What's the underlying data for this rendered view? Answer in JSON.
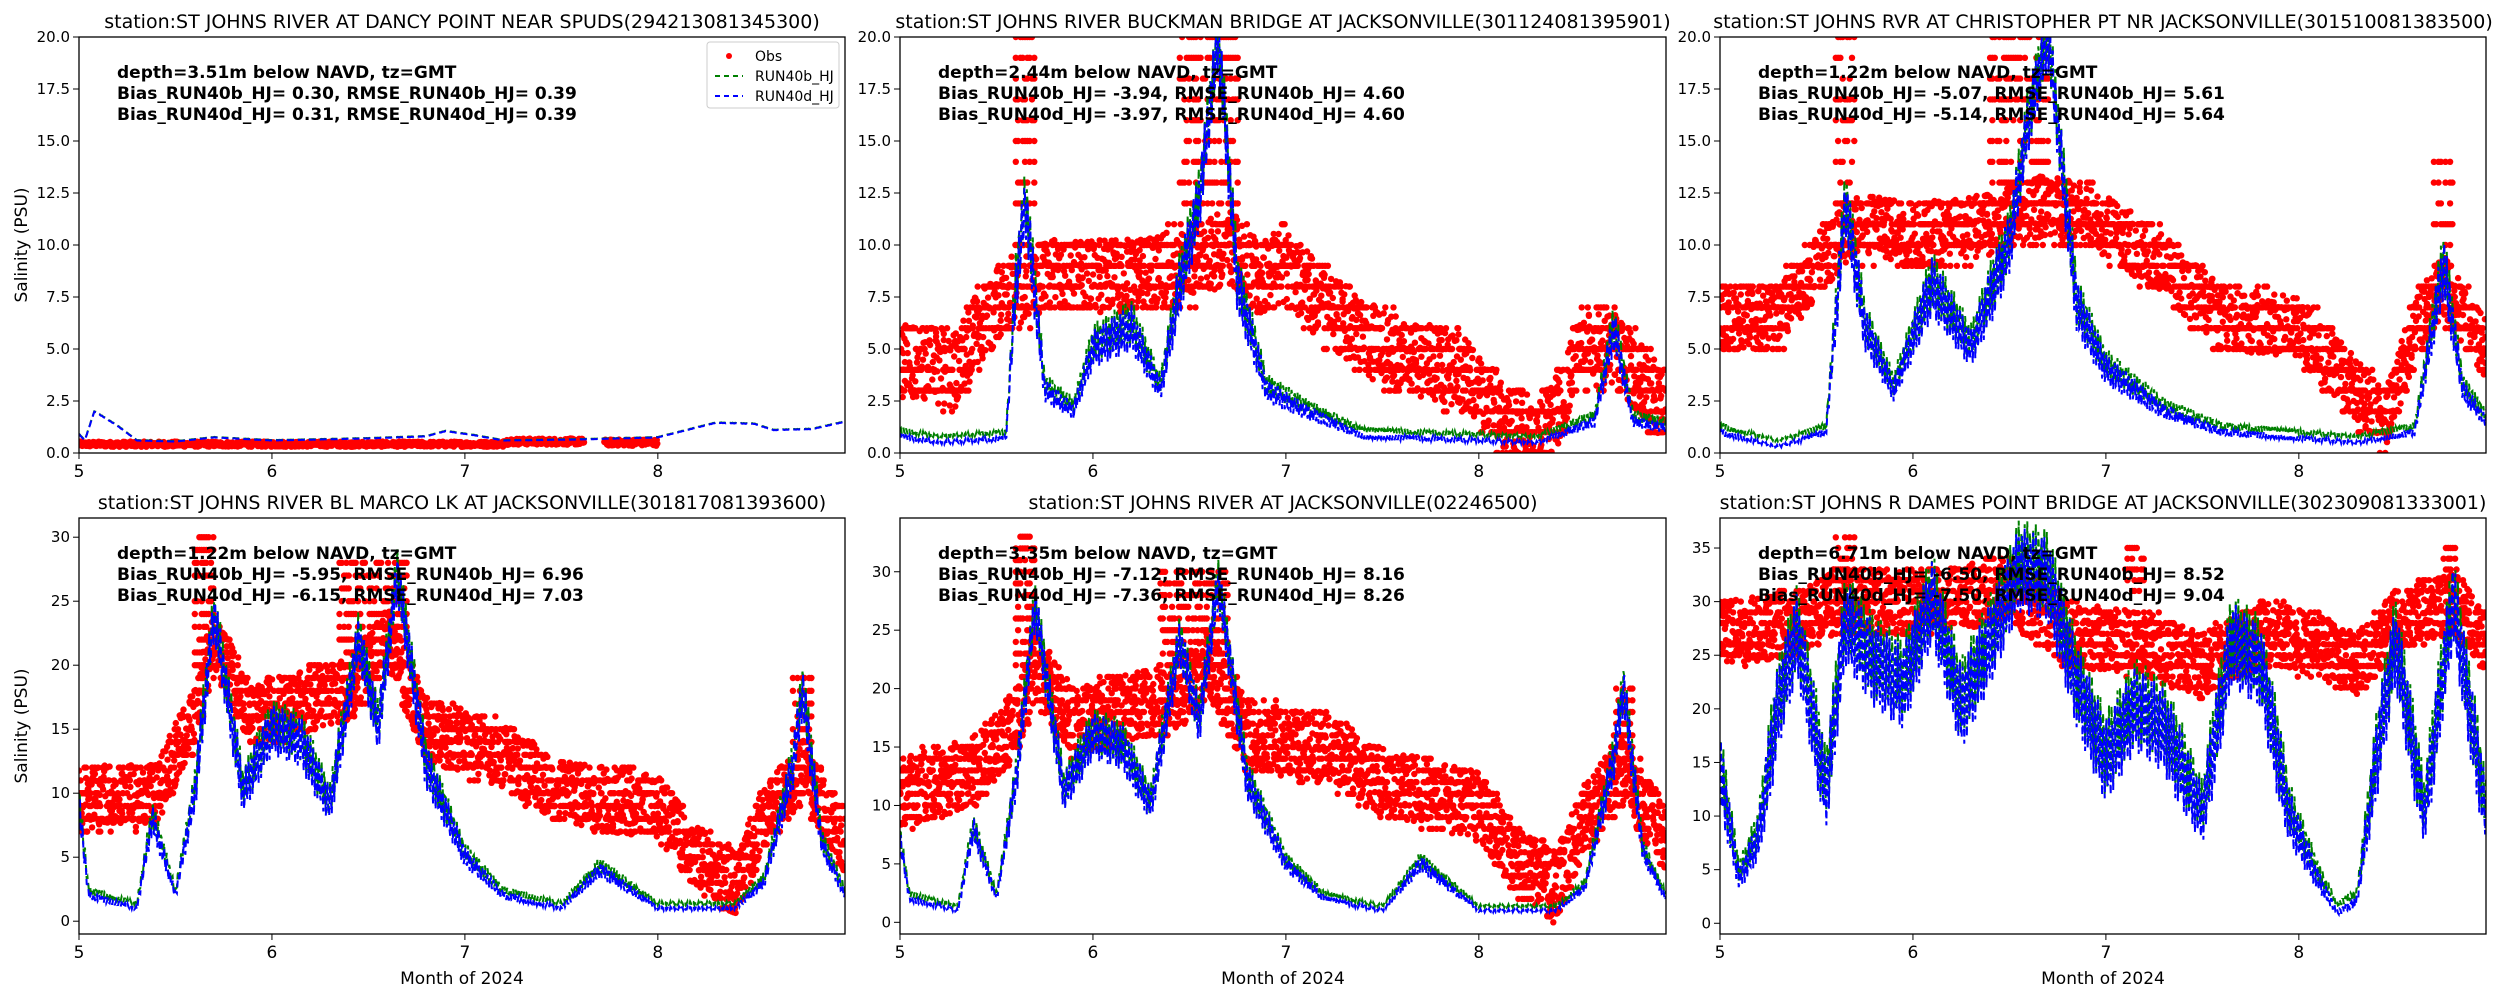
{
  "figure": {
    "legend_location": "upper-right of first panel",
    "colors": {
      "obs": "#ff0000",
      "run40b": "#008000",
      "run40d": "#0000ff"
    }
  },
  "chart_data": [
    {
      "type": "scatter",
      "title": "station:ST JOHNS RIVER AT DANCY POINT NEAR SPUDS(294213081345300)",
      "xlabel": "",
      "ylabel": "Salinity (PSU)",
      "xlim": [
        5,
        8.97
      ],
      "ylim": [
        0,
        20
      ],
      "xticks": [
        "5",
        "6",
        "7",
        "8"
      ],
      "yticks": [
        "0.0",
        "2.5",
        "5.0",
        "7.5",
        "10.0",
        "12.5",
        "15.0",
        "17.5",
        "20.0"
      ],
      "ytick_values": [
        0,
        2.5,
        5,
        7.5,
        10,
        12.5,
        15,
        17.5,
        20
      ],
      "stats": [
        "depth=3.51m below NAVD, tz=GMT",
        "Bias_RUN40b_HJ=  0.30, RMSE_RUN40b_HJ=  0.39",
        "Bias_RUN40d_HJ=  0.31, RMSE_RUN40d_HJ=  0.39"
      ],
      "legend": [
        "Obs",
        "RUN40b_HJ",
        "RUN40d_HJ"
      ],
      "show_legend": true,
      "obs_bands": [
        [
          5.0,
          7.2,
          0.3,
          0.55
        ],
        [
          7.2,
          7.62,
          0.4,
          0.7
        ],
        [
          7.72,
          8.0,
          0.35,
          0.65
        ]
      ],
      "model_d": [
        [
          5.0,
          0.9
        ],
        [
          5.03,
          0.6
        ],
        [
          5.08,
          2.0
        ],
        [
          5.2,
          1.3
        ],
        [
          5.3,
          0.6
        ],
        [
          5.5,
          0.55
        ],
        [
          5.7,
          0.75
        ],
        [
          6.0,
          0.6
        ],
        [
          6.5,
          0.7
        ],
        [
          6.8,
          0.8
        ],
        [
          6.9,
          1.05
        ],
        [
          7.05,
          0.85
        ],
        [
          7.2,
          0.6
        ],
        [
          7.6,
          0.65
        ],
        [
          8.0,
          0.75
        ],
        [
          8.3,
          1.45
        ],
        [
          8.5,
          1.4
        ],
        [
          8.6,
          1.1
        ],
        [
          8.8,
          1.15
        ],
        [
          8.97,
          1.5
        ]
      ],
      "model_b_offset": 0.02,
      "noise": 0.05
    },
    {
      "type": "scatter",
      "title": "station:ST JOHNS RIVER BUCKMAN BRIDGE AT JACKSONVILLE(301124081395901)",
      "xlabel": "",
      "ylabel": "",
      "xlim": [
        5,
        8.97
      ],
      "ylim": [
        0,
        20
      ],
      "xticks": [
        "5",
        "6",
        "7",
        "8"
      ],
      "yticks": [
        "0.0",
        "2.5",
        "5.0",
        "7.5",
        "10.0",
        "12.5",
        "15.0",
        "17.5",
        "20.0"
      ],
      "ytick_values": [
        0,
        2.5,
        5,
        7.5,
        10,
        12.5,
        15,
        17.5,
        20
      ],
      "stats": [
        "depth=2.44m below NAVD, tz=GMT",
        "Bias_RUN40b_HJ= -3.94, RMSE_RUN40b_HJ=  4.60",
        "Bias_RUN40d_HJ= -3.97, RMSE_RUN40d_HJ=  4.60"
      ],
      "show_legend": false,
      "obs_center": [
        [
          5.0,
          4.5
        ],
        [
          5.3,
          4.0
        ],
        [
          5.4,
          6.0
        ],
        [
          5.6,
          8.0
        ],
        [
          5.8,
          8.5
        ],
        [
          6.2,
          8.5
        ],
        [
          6.5,
          9.0
        ],
        [
          6.7,
          10.0
        ],
        [
          6.85,
          8.5
        ],
        [
          7.0,
          9.0
        ],
        [
          7.2,
          7.0
        ],
        [
          7.5,
          5.0
        ],
        [
          7.9,
          4.0
        ],
        [
          8.1,
          2.0
        ],
        [
          8.3,
          0.8
        ],
        [
          8.45,
          2.5
        ],
        [
          8.5,
          5.0
        ],
        [
          8.7,
          5.0
        ],
        [
          8.97,
          2.0
        ]
      ],
      "obs_spread": 1.8,
      "obs_spikes": [
        [
          5.6,
          5.7,
          12,
          20
        ],
        [
          6.45,
          6.75,
          12,
          20
        ]
      ],
      "model_d": [
        [
          5.0,
          0.8
        ],
        [
          5.2,
          0.5
        ],
        [
          5.55,
          0.7
        ],
        [
          5.6,
          8.0
        ],
        [
          5.65,
          12.0
        ],
        [
          5.75,
          3.0
        ],
        [
          5.9,
          2.0
        ],
        [
          6.0,
          5.0
        ],
        [
          6.2,
          6.0
        ],
        [
          6.35,
          3.0
        ],
        [
          6.45,
          8.0
        ],
        [
          6.55,
          12.0
        ],
        [
          6.65,
          20.0
        ],
        [
          6.75,
          8.0
        ],
        [
          6.9,
          3.0
        ],
        [
          7.1,
          2.0
        ],
        [
          7.4,
          0.8
        ],
        [
          8.0,
          0.6
        ],
        [
          8.3,
          0.5
        ],
        [
          8.6,
          1.5
        ],
        [
          8.7,
          6.0
        ],
        [
          8.8,
          1.5
        ],
        [
          8.97,
          1.2
        ]
      ],
      "model_b_offset": 0.3,
      "noise": 1.5
    },
    {
      "type": "scatter",
      "title": "station:ST JOHNS RVR AT CHRISTOPHER PT NR JACKSONVILLE(301510081383500)",
      "xlabel": "",
      "ylabel": "",
      "xlim": [
        5,
        8.97
      ],
      "ylim": [
        0,
        20
      ],
      "xticks": [
        "5",
        "6",
        "7",
        "8"
      ],
      "yticks": [
        "0.0",
        "2.5",
        "5.0",
        "7.5",
        "10.0",
        "12.5",
        "15.0",
        "17.5",
        "20.0"
      ],
      "ytick_values": [
        0,
        2.5,
        5,
        7.5,
        10,
        12.5,
        15,
        17.5,
        20
      ],
      "stats": [
        "depth=1.22m below NAVD, tz=GMT",
        "Bias_RUN40b_HJ= -5.07, RMSE_RUN40b_HJ=  5.61",
        "Bias_RUN40d_HJ= -5.14, RMSE_RUN40d_HJ=  5.64"
      ],
      "show_legend": false,
      "obs_center": [
        [
          5.0,
          6.5
        ],
        [
          5.3,
          6.5
        ],
        [
          5.5,
          9.0
        ],
        [
          5.7,
          11.0
        ],
        [
          6.0,
          10.5
        ],
        [
          6.4,
          11.0
        ],
        [
          6.7,
          12.0
        ],
        [
          7.0,
          11.0
        ],
        [
          7.3,
          9.0
        ],
        [
          7.6,
          6.5
        ],
        [
          8.0,
          6.0
        ],
        [
          8.3,
          3.0
        ],
        [
          8.45,
          1.5
        ],
        [
          8.6,
          6.0
        ],
        [
          8.75,
          8.0
        ],
        [
          8.97,
          5.0
        ]
      ],
      "obs_spread": 1.5,
      "obs_spikes": [
        [
          5.6,
          5.7,
          12,
          20
        ],
        [
          6.4,
          6.7,
          12,
          20
        ],
        [
          8.7,
          8.8,
          10,
          14
        ]
      ],
      "model_d": [
        [
          5.0,
          1.0
        ],
        [
          5.3,
          0.3
        ],
        [
          5.55,
          1.0
        ],
        [
          5.65,
          12.0
        ],
        [
          5.75,
          6.0
        ],
        [
          5.9,
          3.0
        ],
        [
          6.1,
          8.0
        ],
        [
          6.3,
          5.0
        ],
        [
          6.5,
          10.0
        ],
        [
          6.6,
          16.0
        ],
        [
          6.7,
          20.0
        ],
        [
          6.85,
          7.0
        ],
        [
          7.0,
          4.0
        ],
        [
          7.3,
          2.0
        ],
        [
          7.6,
          1.0
        ],
        [
          8.3,
          0.5
        ],
        [
          8.6,
          1.0
        ],
        [
          8.75,
          9.0
        ],
        [
          8.85,
          3.0
        ],
        [
          8.97,
          1.5
        ]
      ],
      "model_b_offset": 0.3,
      "noise": 1.5
    },
    {
      "type": "scatter",
      "title": "station:ST JOHNS RIVER BL MARCO LK AT JACKSONVILLE(301817081393600)",
      "xlabel": "Month of 2024",
      "ylabel": "Salinity (PSU)",
      "xlim": [
        5,
        8.97
      ],
      "ylim": [
        -1,
        31.5
      ],
      "xticks": [
        "5",
        "6",
        "7",
        "8"
      ],
      "yticks": [
        "0",
        "5",
        "10",
        "15",
        "20",
        "25",
        "30"
      ],
      "ytick_values": [
        0,
        5,
        10,
        15,
        20,
        25,
        30
      ],
      "stats": [
        "depth=1.22m below NAVD, tz=GMT",
        "Bias_RUN40b_HJ= -5.95, RMSE_RUN40b_HJ=  6.96",
        "Bias_RUN40d_HJ= -6.15, RMSE_RUN40d_HJ=  7.03"
      ],
      "show_legend": false,
      "obs_center": [
        [
          5.0,
          9.5
        ],
        [
          5.4,
          10.0
        ],
        [
          5.6,
          16.0
        ],
        [
          5.7,
          22.0
        ],
        [
          5.9,
          16.0
        ],
        [
          6.1,
          17.0
        ],
        [
          6.4,
          18.0
        ],
        [
          6.6,
          22.0
        ],
        [
          6.8,
          15.0
        ],
        [
          7.2,
          13.0
        ],
        [
          7.5,
          10.0
        ],
        [
          8.0,
          9.0
        ],
        [
          8.2,
          5.0
        ],
        [
          8.4,
          3.0
        ],
        [
          8.55,
          8.0
        ],
        [
          8.75,
          12.0
        ],
        [
          8.97,
          6.0
        ]
      ],
      "obs_spread": 2.5,
      "obs_spikes": [
        [
          5.6,
          5.7,
          20,
          30
        ],
        [
          6.35,
          6.7,
          20,
          28
        ],
        [
          8.7,
          8.8,
          14,
          19
        ]
      ],
      "model_d": [
        [
          5.0,
          9.0
        ],
        [
          5.05,
          2.0
        ],
        [
          5.3,
          1.0
        ],
        [
          5.38,
          8.0
        ],
        [
          5.5,
          2.0
        ],
        [
          5.6,
          10.0
        ],
        [
          5.7,
          24.0
        ],
        [
          5.85,
          10.0
        ],
        [
          6.0,
          15.0
        ],
        [
          6.15,
          14.0
        ],
        [
          6.3,
          9.0
        ],
        [
          6.45,
          22.0
        ],
        [
          6.55,
          15.0
        ],
        [
          6.65,
          27.0
        ],
        [
          6.8,
          12.0
        ],
        [
          7.0,
          5.0
        ],
        [
          7.2,
          2.0
        ],
        [
          7.5,
          1.0
        ],
        [
          7.7,
          4.0
        ],
        [
          8.0,
          1.0
        ],
        [
          8.4,
          1.0
        ],
        [
          8.55,
          3.0
        ],
        [
          8.7,
          12.0
        ],
        [
          8.75,
          18.0
        ],
        [
          8.85,
          6.0
        ],
        [
          8.97,
          2.0
        ]
      ],
      "model_b_offset": 0.4,
      "noise": 2.0
    },
    {
      "type": "scatter",
      "title": "station:ST JOHNS RIVER AT JACKSONVILLE(02246500)",
      "xlabel": "Month of 2024",
      "ylabel": "",
      "xlim": [
        5,
        8.97
      ],
      "ylim": [
        -1,
        34.6
      ],
      "xticks": [
        "5",
        "6",
        "7",
        "8"
      ],
      "yticks": [
        "0",
        "5",
        "10",
        "15",
        "20",
        "25",
        "30"
      ],
      "ytick_values": [
        0,
        5,
        10,
        15,
        20,
        25,
        30
      ],
      "stats": [
        "depth=3.35m below NAVD, tz=GMT",
        "Bias_RUN40b_HJ= -7.12, RMSE_RUN40b_HJ=  8.16",
        "Bias_RUN40d_HJ= -7.36, RMSE_RUN40d_HJ=  8.26"
      ],
      "show_legend": false,
      "obs_center": [
        [
          5.0,
          11.0
        ],
        [
          5.4,
          13.0
        ],
        [
          5.6,
          17.0
        ],
        [
          5.7,
          22.0
        ],
        [
          5.9,
          17.0
        ],
        [
          6.1,
          18.0
        ],
        [
          6.4,
          19.0
        ],
        [
          6.6,
          22.0
        ],
        [
          6.8,
          16.0
        ],
        [
          7.2,
          15.0
        ],
        [
          7.5,
          12.0
        ],
        [
          8.0,
          10.0
        ],
        [
          8.2,
          5.0
        ],
        [
          8.4,
          3.0
        ],
        [
          8.55,
          9.0
        ],
        [
          8.75,
          13.0
        ],
        [
          8.97,
          7.0
        ]
      ],
      "obs_spread": 3.0,
      "obs_spikes": [
        [
          5.6,
          5.7,
          22,
          33
        ],
        [
          6.35,
          6.7,
          22,
          30
        ],
        [
          8.7,
          8.8,
          15,
          20
        ]
      ],
      "model_d": [
        [
          5.0,
          7.0
        ],
        [
          5.05,
          2.0
        ],
        [
          5.3,
          1.0
        ],
        [
          5.38,
          8.0
        ],
        [
          5.5,
          2.0
        ],
        [
          5.6,
          12.0
        ],
        [
          5.7,
          27.0
        ],
        [
          5.85,
          11.0
        ],
        [
          6.0,
          16.0
        ],
        [
          6.15,
          15.0
        ],
        [
          6.3,
          10.0
        ],
        [
          6.45,
          24.0
        ],
        [
          6.55,
          17.0
        ],
        [
          6.65,
          29.0
        ],
        [
          6.8,
          12.0
        ],
        [
          7.0,
          5.0
        ],
        [
          7.2,
          2.0
        ],
        [
          7.5,
          1.0
        ],
        [
          7.7,
          5.0
        ],
        [
          8.0,
          1.0
        ],
        [
          8.4,
          1.0
        ],
        [
          8.55,
          3.0
        ],
        [
          8.7,
          14.0
        ],
        [
          8.75,
          20.0
        ],
        [
          8.85,
          6.0
        ],
        [
          8.97,
          2.0
        ]
      ],
      "model_b_offset": 0.4,
      "noise": 2.0
    },
    {
      "type": "scatter",
      "title": "station:ST JOHNS R DAMES POINT BRIDGE AT JACKSONVILLE(302309081333001)",
      "xlabel": "Month of 2024",
      "ylabel": "",
      "xlim": [
        5,
        8.97
      ],
      "ylim": [
        -1,
        37.8
      ],
      "xticks": [
        "5",
        "6",
        "7",
        "8"
      ],
      "yticks": [
        "0",
        "5",
        "10",
        "15",
        "20",
        "25",
        "30",
        "35"
      ],
      "ytick_values": [
        0,
        5,
        10,
        15,
        20,
        25,
        30,
        35
      ],
      "stats": [
        "depth=6.71m below NAVD, tz=GMT",
        "Bias_RUN40b_HJ= -6.50, RMSE_RUN40b_HJ=  8.52",
        "Bias_RUN40d_HJ= -7.50, RMSE_RUN40d_HJ=  9.04"
      ],
      "show_legend": false,
      "obs_center": [
        [
          5.0,
          27.0
        ],
        [
          5.4,
          28.0
        ],
        [
          5.6,
          30.0
        ],
        [
          6.0,
          30.0
        ],
        [
          6.5,
          31.0
        ],
        [
          6.8,
          27.0
        ],
        [
          7.2,
          26.0
        ],
        [
          7.5,
          24.0
        ],
        [
          7.8,
          27.0
        ],
        [
          8.1,
          26.0
        ],
        [
          8.3,
          24.0
        ],
        [
          8.5,
          28.0
        ],
        [
          8.8,
          30.0
        ],
        [
          8.97,
          26.0
        ]
      ],
      "obs_spread": 3.0,
      "obs_spikes": [
        [
          5.6,
          5.7,
          32,
          36
        ],
        [
          7.1,
          7.2,
          31,
          35
        ],
        [
          8.75,
          8.82,
          32,
          35
        ]
      ],
      "model_d": [
        [
          5.0,
          14.0
        ],
        [
          5.1,
          4.0
        ],
        [
          5.2,
          8.0
        ],
        [
          5.3,
          20.0
        ],
        [
          5.4,
          27.0
        ],
        [
          5.55,
          12.0
        ],
        [
          5.65,
          28.0
        ],
        [
          5.8,
          24.0
        ],
        [
          5.95,
          22.0
        ],
        [
          6.1,
          30.0
        ],
        [
          6.25,
          20.0
        ],
        [
          6.4,
          26.0
        ],
        [
          6.55,
          33.0
        ],
        [
          6.7,
          32.0
        ],
        [
          6.85,
          22.0
        ],
        [
          7.0,
          15.0
        ],
        [
          7.15,
          20.0
        ],
        [
          7.3,
          18.0
        ],
        [
          7.5,
          10.0
        ],
        [
          7.65,
          26.0
        ],
        [
          7.8,
          24.0
        ],
        [
          7.95,
          10.0
        ],
        [
          8.1,
          4.0
        ],
        [
          8.2,
          1.0
        ],
        [
          8.3,
          2.0
        ],
        [
          8.4,
          15.0
        ],
        [
          8.5,
          26.0
        ],
        [
          8.65,
          10.0
        ],
        [
          8.8,
          30.0
        ],
        [
          8.9,
          18.0
        ],
        [
          8.97,
          10.0
        ]
      ],
      "model_b_offset": 0.8,
      "noise": 4.0
    }
  ]
}
